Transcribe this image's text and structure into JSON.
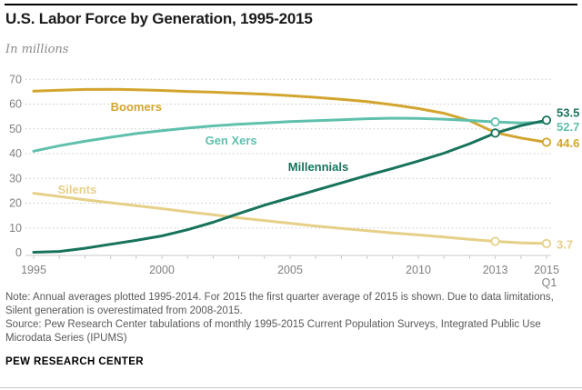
{
  "header": {
    "title": "U.S. Labor Force by Generation, 1995-2015",
    "subtitle": "In millions"
  },
  "footer": {
    "note": "Note: Annual averages plotted 1995-2014. For 2015 the first quarter average of 2015 is shown. Due to data limitations, Silent generation is overestimated from 2008-2015.",
    "source": "Source: Pew Research Center tabulations of monthly 1995-2015 Current Population Surveys, Integrated Public Use Microdata Series (IPUMS)",
    "brand": "PEW RESEARCH CENTER"
  },
  "chart_data": {
    "type": "line",
    "title": "U.S. Labor Force by Generation, 1995-2015",
    "ylabel": "In millions",
    "xlim": [
      1995,
      2015
    ],
    "ylim": [
      0,
      70
    ],
    "yticks": [
      0,
      10,
      20,
      30,
      40,
      50,
      60,
      70
    ],
    "grid": "horizontal-dotted",
    "legend_position": "inline-labels",
    "x": [
      1995,
      1996,
      1997,
      1998,
      1999,
      2000,
      2001,
      2002,
      2003,
      2004,
      2005,
      2006,
      2007,
      2008,
      2009,
      2010,
      2011,
      2012,
      2013,
      2014,
      2015
    ],
    "x_note": "last point is 2015 Q1",
    "x_ticks": [
      {
        "value": 1995,
        "label": "1995"
      },
      {
        "value": 2000,
        "label": "2000"
      },
      {
        "value": 2005,
        "label": "2005"
      },
      {
        "value": 2010,
        "label": "2010"
      },
      {
        "value": 2013,
        "label": "2013"
      },
      {
        "value": 2015,
        "label": "2015",
        "sub_label": "Q1"
      }
    ],
    "series": [
      {
        "name": "Boomers",
        "color": "#d2a52f",
        "values": [
          65.2,
          65.6,
          65.9,
          66.0,
          65.8,
          65.5,
          65.1,
          64.8,
          64.4,
          64.0,
          63.4,
          62.7,
          61.9,
          61.0,
          59.7,
          58.2,
          56.3,
          53.3,
          48.5,
          46.3,
          44.6
        ],
        "end_label": {
          "text": "44.6",
          "dy": 1
        },
        "inline_label": {
          "text": "Boomers",
          "x": 1999,
          "y": 58.7
        }
      },
      {
        "name": "Silents",
        "color": "#e6d088",
        "values": [
          24.0,
          22.7,
          21.4,
          20.2,
          19.0,
          17.8,
          16.5,
          15.3,
          14.1,
          13.0,
          11.9,
          10.8,
          9.8,
          8.9,
          8.0,
          7.2,
          6.3,
          5.4,
          4.6,
          4.0,
          3.7
        ],
        "end_label": {
          "text": "3.7",
          "dy": 1
        },
        "inline_label": {
          "text": "Silents",
          "x": 1996.7,
          "y": 25.3
        }
      },
      {
        "name": "Gen Xers",
        "color": "#5fc0ac",
        "values": [
          41.0,
          43.2,
          45.0,
          46.6,
          48.1,
          49.3,
          50.3,
          51.2,
          51.9,
          52.4,
          52.9,
          53.3,
          53.7,
          54.1,
          54.3,
          54.2,
          53.9,
          53.4,
          52.8,
          52.4,
          52.7
        ],
        "end_label": {
          "text": "52.7",
          "dy": 5
        },
        "inline_label": {
          "text": "Gen Xers",
          "x": 2002.7,
          "y": 45.1
        }
      },
      {
        "name": "Millennials",
        "color": "#17735c",
        "values": [
          0.2,
          0.5,
          1.8,
          3.4,
          5.0,
          6.8,
          9.3,
          12.3,
          15.8,
          19.2,
          22.2,
          25.2,
          28.2,
          31.2,
          34.0,
          37.0,
          40.2,
          44.0,
          48.3,
          51.3,
          53.5
        ],
        "end_label": {
          "text": "53.5",
          "dy": -8
        },
        "inline_label": {
          "text": "Millennials",
          "x": 2006.1,
          "y": 34.5
        }
      }
    ],
    "markers": [
      {
        "series": "Gen Xers",
        "x": 2013
      },
      {
        "series": "Millennials",
        "x": 2013
      },
      {
        "series": "Silents",
        "x": 2013
      },
      {
        "series": "Boomers",
        "x": 2015
      },
      {
        "series": "Silents",
        "x": 2015
      },
      {
        "series": "Millennials",
        "x": 2015
      }
    ]
  }
}
